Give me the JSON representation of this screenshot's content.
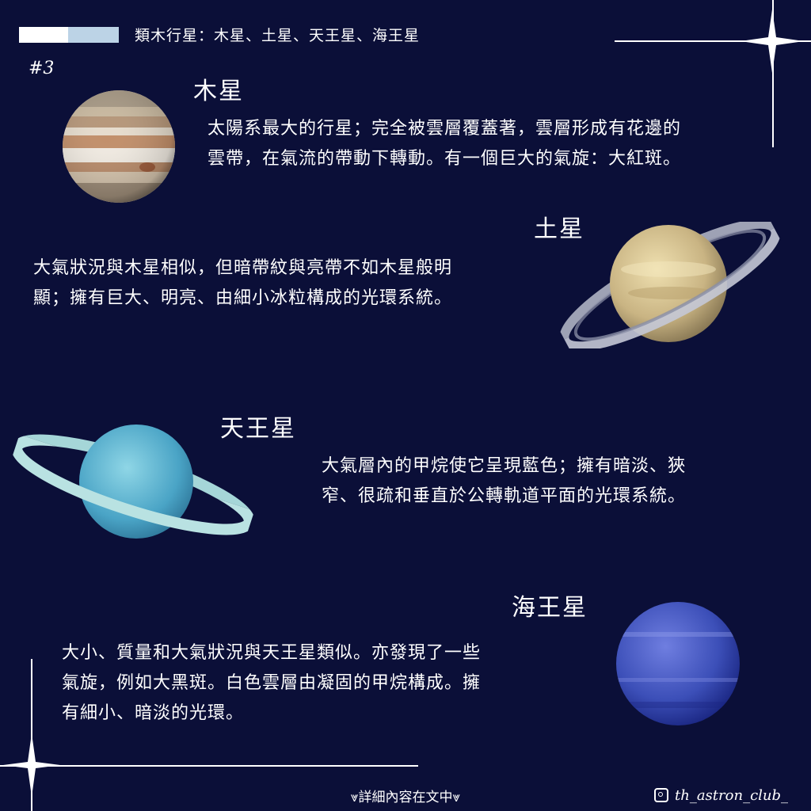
{
  "header": {
    "title": "類木行星：木星、土星、天王星、海王星",
    "page_number": "#3"
  },
  "planets": [
    {
      "name": "木星",
      "icon": "jupiter-icon",
      "lines": [
        "太陽系最大的行星；完全被雲層覆蓋著，雲層形成有花邊的",
        "雲帶，在氣流的帶動下轉動。有一個巨大的氣旋：大紅斑。"
      ]
    },
    {
      "name": "土星",
      "icon": "saturn-icon",
      "lines": [
        "大氣狀況與木星相似，但暗帶紋與亮帶不如木星般明",
        "顯；擁有巨大、明亮、由細小冰粒構成的光環系統。"
      ]
    },
    {
      "name": "天王星",
      "icon": "uranus-icon",
      "lines": [
        "大氣層內的甲烷使它呈現藍色；擁有暗淡、狹",
        "窄、很疏和垂直於公轉軌道平面的光環系統。"
      ]
    },
    {
      "name": "海王星",
      "icon": "neptune-icon",
      "lines": [
        "大小、質量和大氣狀況與天王星類似。亦發現了一些",
        "氣旋，例如大黑斑。白色雲層由凝固的甲烷構成。擁",
        "有細小、暗淡的光環。"
      ]
    }
  ],
  "footer": {
    "hint": "⩔詳細內容在文中⩔",
    "handle": "th_astron_club_"
  },
  "colors": {
    "background": "#0b0f38",
    "header_accent": "#bcd3e6",
    "text": "#ffffff"
  }
}
